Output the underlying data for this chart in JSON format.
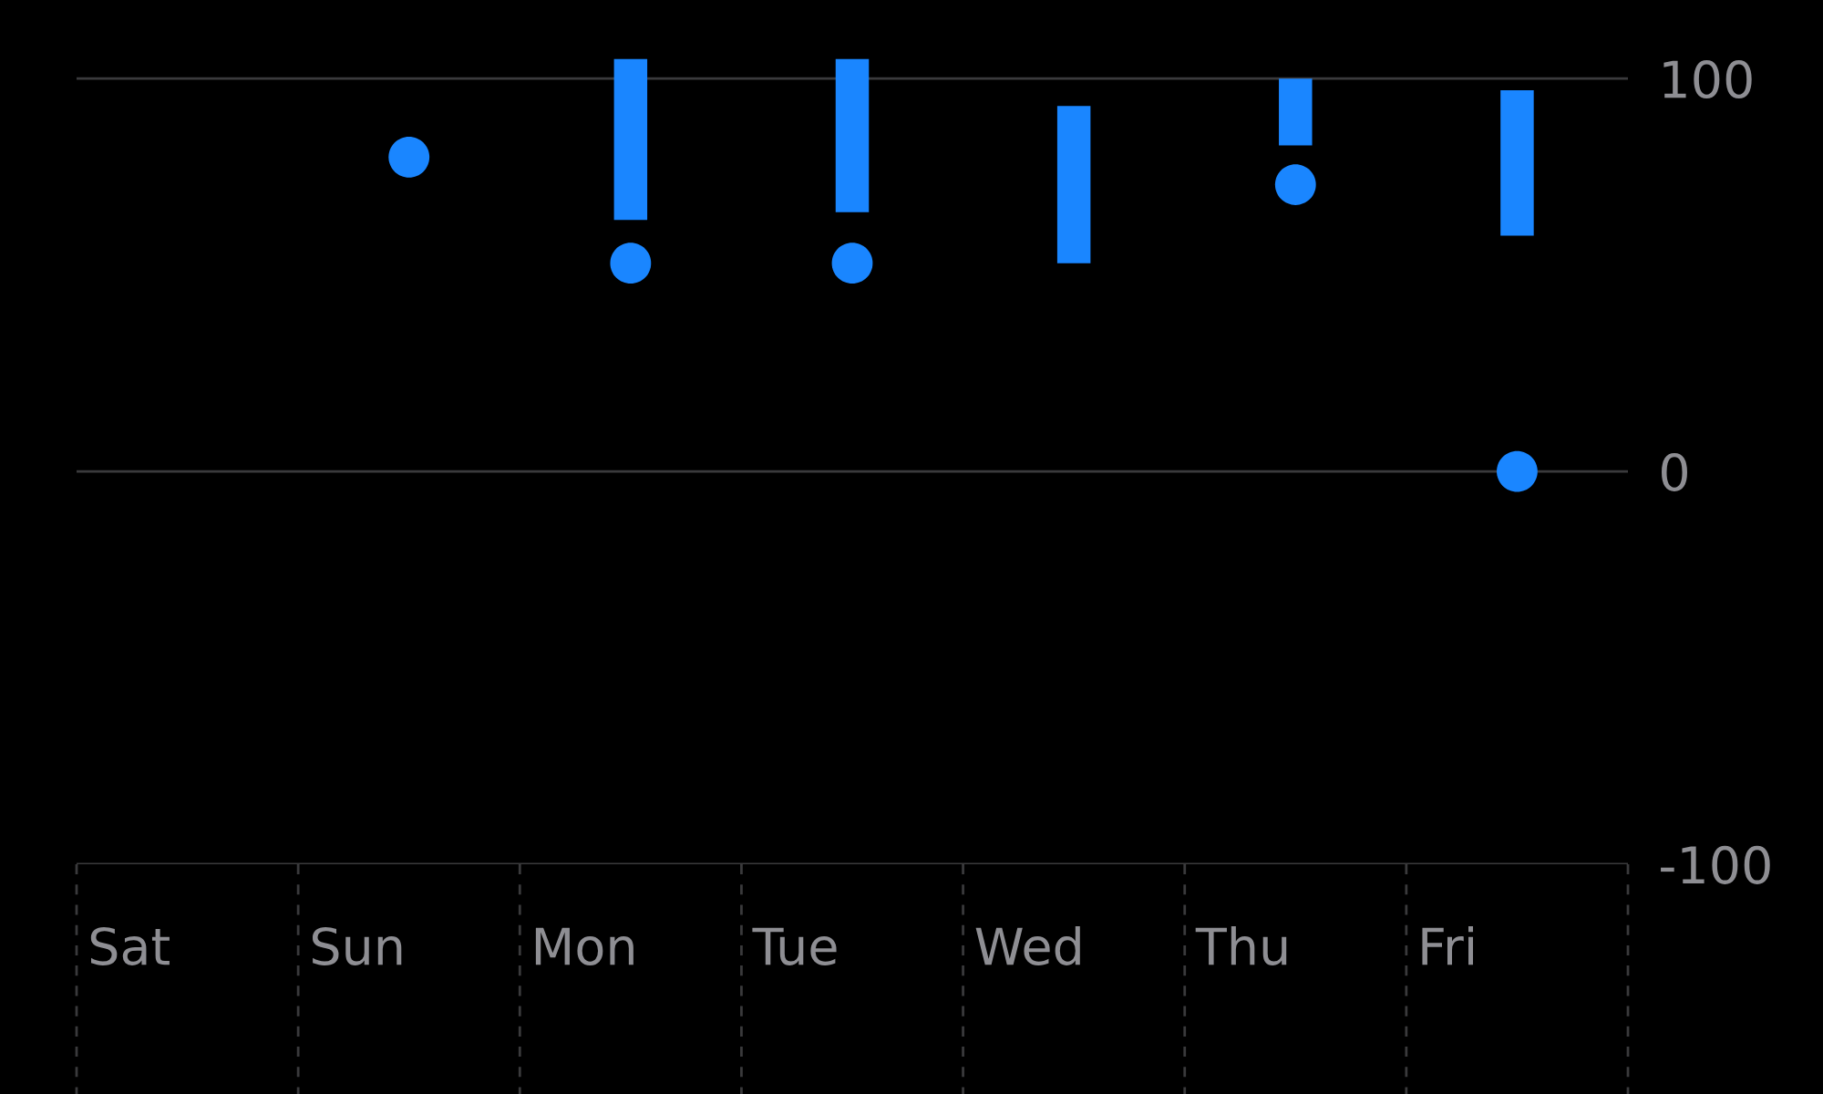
{
  "chart_data": {
    "type": "bar",
    "categories": [
      "Sat",
      "Sun",
      "Mon",
      "Tue",
      "Wed",
      "Thu",
      "Fri"
    ],
    "series": [
      {
        "type": "bar",
        "color": "#1a86ff",
        "base": [
          null,
          null,
          64,
          66,
          53,
          83,
          60
        ],
        "values": [
          null,
          null,
          41,
          39,
          40,
          17,
          37
        ]
      },
      {
        "type": "scatter",
        "color": "#1a86ff",
        "values": [
          null,
          80,
          53,
          53,
          null,
          73,
          0
        ]
      }
    ],
    "ylim": [
      -100,
      120
    ],
    "yticks": [
      -100,
      0,
      100
    ],
    "grid": true,
    "legend": false
  }
}
